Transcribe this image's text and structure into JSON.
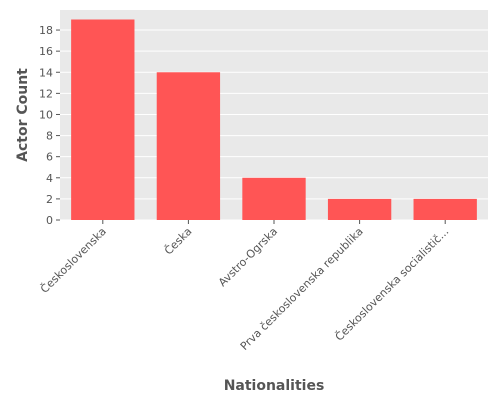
{
  "chart_data": {
    "type": "bar",
    "title": "",
    "xlabel": "Nationalities",
    "ylabel": "Actor Count",
    "categories": [
      "Československa",
      "Česka",
      "Avstro-Ogrska",
      "Prva československa republika",
      "Československa socialistič..."
    ],
    "values": [
      19,
      14,
      4,
      2,
      2
    ],
    "ylim": [
      0,
      19.9
    ],
    "yticks": [
      0,
      2,
      4,
      6,
      8,
      10,
      12,
      14,
      16,
      18
    ],
    "grid": true,
    "legend": "none",
    "colors": {
      "bar": "#ff5555",
      "panel": "#e9e9e9",
      "grid": "#ffffff",
      "text": "#555555"
    }
  }
}
